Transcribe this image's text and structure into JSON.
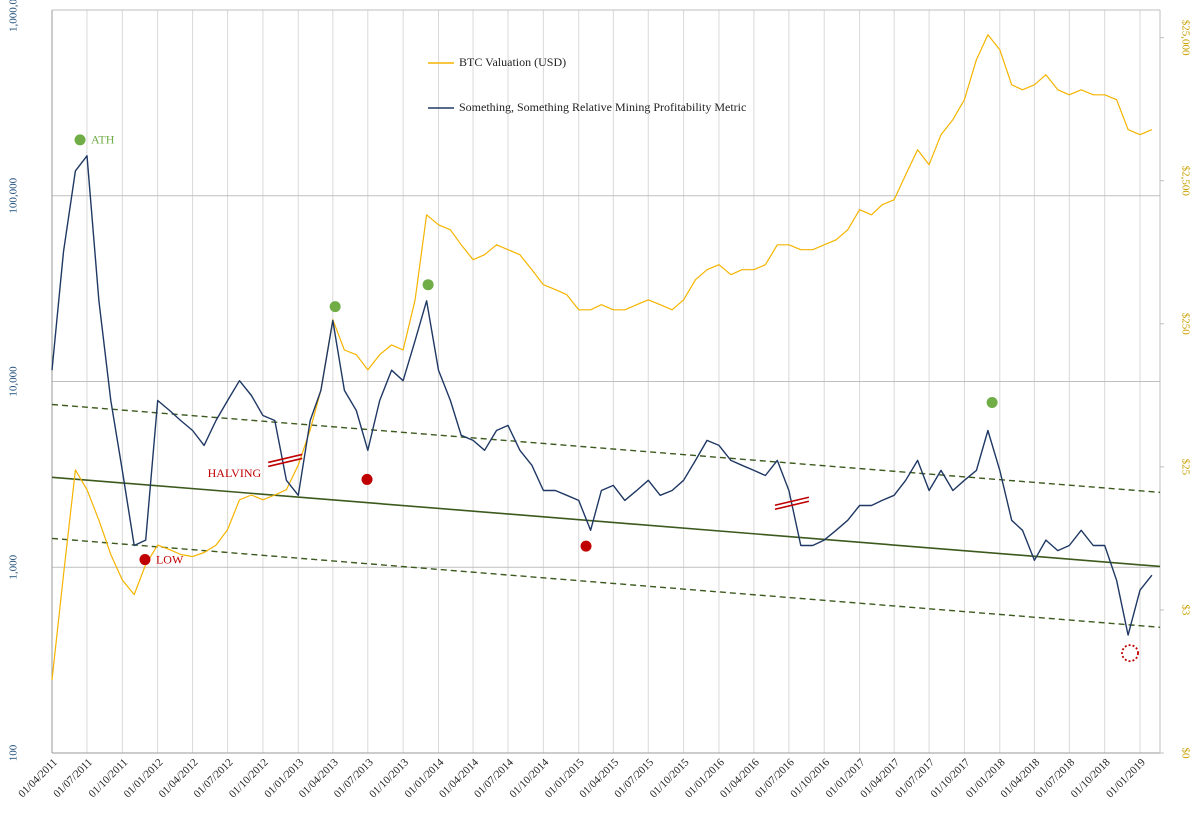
{
  "chart_data": {
    "type": "line",
    "x": [
      "01/04/2011",
      "01/05/2011",
      "01/06/2011",
      "01/07/2011",
      "01/08/2011",
      "01/09/2011",
      "01/10/2011",
      "01/11/2011",
      "01/12/2011",
      "01/01/2012",
      "01/02/2012",
      "01/03/2012",
      "01/04/2012",
      "01/05/2012",
      "01/06/2012",
      "01/07/2012",
      "01/08/2012",
      "01/09/2012",
      "01/10/2012",
      "01/11/2012",
      "01/12/2012",
      "01/01/2013",
      "01/02/2013",
      "01/03/2013",
      "01/04/2013",
      "01/05/2013",
      "01/06/2013",
      "01/07/2013",
      "01/08/2013",
      "01/09/2013",
      "01/10/2013",
      "01/11/2013",
      "01/12/2013",
      "01/01/2014",
      "01/02/2014",
      "01/03/2014",
      "01/04/2014",
      "01/05/2014",
      "01/06/2014",
      "01/07/2014",
      "01/08/2014",
      "01/09/2014",
      "01/10/2014",
      "01/11/2014",
      "01/12/2014",
      "01/01/2015",
      "01/02/2015",
      "01/03/2015",
      "01/04/2015",
      "01/05/2015",
      "01/06/2015",
      "01/07/2015",
      "01/08/2015",
      "01/09/2015",
      "01/10/2015",
      "01/11/2015",
      "01/12/2015",
      "01/01/2016",
      "01/02/2016",
      "01/03/2016",
      "01/04/2016",
      "01/05/2016",
      "01/06/2016",
      "01/07/2016",
      "01/08/2016",
      "01/09/2016",
      "01/10/2016",
      "01/11/2016",
      "01/12/2016",
      "01/01/2017",
      "01/02/2017",
      "01/03/2017",
      "01/04/2017",
      "01/05/2017",
      "01/06/2017",
      "01/07/2017",
      "01/08/2017",
      "01/09/2017",
      "01/10/2017",
      "01/11/2017",
      "01/12/2017",
      "01/01/2018",
      "01/02/2018",
      "01/03/2018",
      "01/04/2018",
      "01/05/2018",
      "01/06/2018",
      "01/07/2018",
      "01/08/2018",
      "01/09/2018",
      "01/10/2018",
      "01/11/2018",
      "01/12/2018",
      "01/01/2019",
      "01/02/2019"
    ],
    "series": [
      {
        "name": "BTC Valuation (USD)",
        "color": "#f5b400",
        "axis": "y2",
        "values": [
          0.81,
          4.4,
          23.8,
          17.3,
          10.6,
          6.1,
          4.05,
          3.2,
          5.2,
          7.1,
          6.6,
          6.1,
          5.9,
          6.3,
          7.1,
          9.1,
          14.7,
          15.9,
          14.7,
          15.9,
          17.3,
          25.8,
          45.4,
          86,
          267,
          164,
          152,
          119,
          152,
          178,
          164,
          368,
          1445,
          1230,
          1135,
          891,
          701,
          760,
          891,
          823,
          760,
          597,
          469,
          433,
          399,
          313,
          313,
          340,
          313,
          313,
          340,
          368,
          340,
          313,
          368,
          508,
          597,
          647,
          551,
          597,
          597,
          647,
          891,
          891,
          823,
          823,
          891,
          966,
          1135,
          1567,
          1445,
          1698,
          1840,
          2755,
          4120,
          3235,
          5245,
          6680,
          9210,
          17540,
          26200,
          20600,
          11700,
          10800,
          11700,
          13770,
          10800,
          9970,
          10800,
          9970,
          9970,
          9210,
          5690,
          5245,
          5690
        ]
      },
      {
        "name": "Something, Something Relative Mining Profitability Metric",
        "color": "#1f3864",
        "values": [
          11500,
          50000,
          136000,
          164000,
          27200,
          7900,
          3320,
          1310,
          1400,
          7900,
          6980,
          6170,
          5450,
          4530,
          6170,
          7900,
          10100,
          8410,
          6560,
          6170,
          2940,
          2440,
          6170,
          8950,
          21300,
          8950,
          6980,
          4260,
          7900,
          11500,
          10100,
          16600,
          27200,
          11500,
          7900,
          5130,
          4820,
          4260,
          5450,
          5800,
          4260,
          3540,
          2590,
          2590,
          2440,
          2290,
          1580,
          2590,
          2760,
          2290,
          2590,
          2940,
          2440,
          2590,
          2940,
          3760,
          4820,
          4530,
          3760,
          3540,
          3320,
          3120,
          3760,
          2590,
          1310,
          1310,
          1400,
          1580,
          1790,
          2150,
          2150,
          2290,
          2440,
          2940,
          3760,
          2590,
          3320,
          2590,
          2940,
          3320,
          5450,
          3320,
          1790,
          1580,
          1090,
          1400,
          1230,
          1310,
          1580,
          1310,
          1310,
          851,
          431,
          752,
          906
        ]
      }
    ],
    "trend_lines": [
      {
        "x": [
          "01/04/2011",
          "22/02/2019"
        ],
        "values": [
          3050,
          1010
        ],
        "color": "#3d5a1e",
        "style": "solid"
      },
      {
        "x": [
          "01/04/2011",
          "22/02/2019"
        ],
        "values": [
          7520,
          2530
        ],
        "color": "#3d5a1e",
        "style": "dashed"
      },
      {
        "x": [
          "01/04/2011",
          "22/02/2019"
        ],
        "values": [
          1430,
          475
        ],
        "color": "#3d5a1e",
        "style": "dashed"
      }
    ],
    "markers": [
      {
        "x": "13/06/2011",
        "value": 200000,
        "color": "#70ad47",
        "shape": "dot",
        "label": "ATH"
      },
      {
        "x": "07/04/2013",
        "value": 25300,
        "color": "#70ad47",
        "shape": "dot"
      },
      {
        "x": "05/12/2013",
        "value": 33200,
        "color": "#70ad47",
        "shape": "dot"
      },
      {
        "x": "12/12/2017",
        "value": 7710,
        "color": "#70ad47",
        "shape": "dot"
      },
      {
        "x": "29/11/2011",
        "value": 1100,
        "color": "#c00000",
        "shape": "dot",
        "label": "LOW"
      },
      {
        "x": "29/06/2013",
        "value": 2970,
        "color": "#c00000",
        "shape": "dot"
      },
      {
        "x": "20/01/2015",
        "value": 1300,
        "color": "#c00000",
        "shape": "dot"
      },
      {
        "x": "06/12/2018",
        "value": 345,
        "color": "#c00000",
        "shape": "dashed-circle"
      },
      {
        "x": "28/11/2012",
        "value": 3760,
        "color": "#c00000",
        "shape": "halving",
        "label": "HALVING"
      },
      {
        "x": "09/07/2016",
        "value": 2210,
        "color": "#c00000",
        "shape": "halving"
      }
    ],
    "xlim": [
      "01/04/2011",
      "22/02/2019"
    ],
    "xticks": [
      "01/04/2011",
      "01/07/2011",
      "01/10/2011",
      "01/01/2012",
      "01/04/2012",
      "01/07/2012",
      "01/10/2012",
      "01/01/2013",
      "01/04/2013",
      "01/07/2013",
      "01/10/2013",
      "01/01/2014",
      "01/04/2014",
      "01/07/2014",
      "01/10/2014",
      "01/01/2015",
      "01/04/2015",
      "01/07/2015",
      "01/10/2015",
      "01/01/2016",
      "01/04/2016",
      "01/07/2016",
      "01/10/2016",
      "01/01/2017",
      "01/04/2017",
      "01/07/2017",
      "01/10/2017",
      "01/01/2018",
      "01/04/2018",
      "01/07/2018",
      "01/10/2018",
      "01/01/2019"
    ],
    "ylim": [
      100,
      1000000
    ],
    "yticks": [
      100,
      {
        "value": 1000,
        "label": "1,000"
      },
      {
        "value": 10000,
        "label": "10,000"
      },
      {
        "value": 100000,
        "label": "100,000"
      },
      {
        "value": 1000000,
        "label": "1,000,000"
      }
    ],
    "y_log": true,
    "y2lim": [
      0.25,
      39000
    ],
    "y2ticks": [
      {
        "value": 0.25,
        "label": "$0"
      },
      {
        "value": 2.5,
        "label": "$3"
      },
      {
        "value": 25,
        "label": "$25"
      },
      {
        "value": 250,
        "label": "$250"
      },
      {
        "value": 2500,
        "label": "$2,500"
      },
      {
        "value": 25000,
        "label": "$25,000"
      }
    ],
    "y2_log": true,
    "grid": true,
    "legend": "top-center",
    "ytick_color": "#1f4e79",
    "y2tick_color": "#c9a000"
  }
}
